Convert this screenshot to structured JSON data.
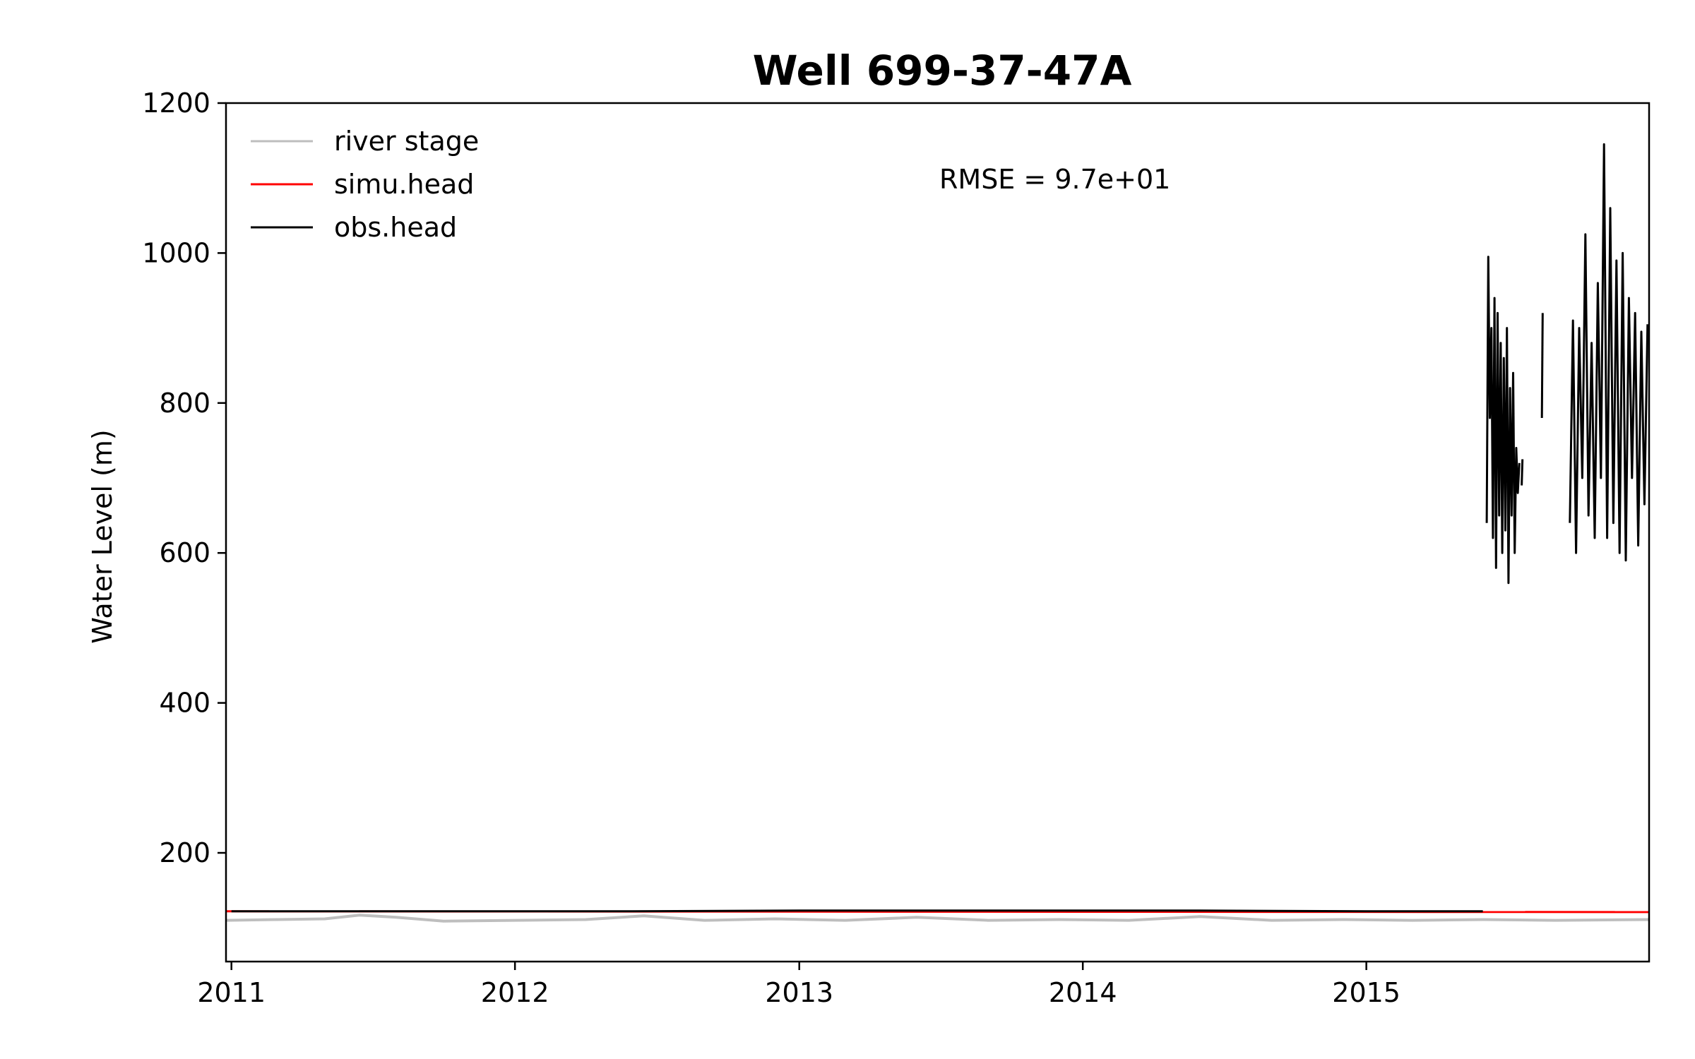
{
  "chart_data": {
    "type": "line",
    "title": "Well 699-37-47A",
    "xlabel": "",
    "ylabel": "Water Level (m)",
    "x_ticks": [
      "2011",
      "2012",
      "2013",
      "2014",
      "2015"
    ],
    "y_ticks": [
      200,
      400,
      600,
      800,
      1000,
      1200
    ],
    "xlim": [
      "2010-12-25",
      "2015-12-31"
    ],
    "ylim": [
      55,
      1200
    ],
    "grid": false,
    "legend_position": "upper-left",
    "annotation": "RMSE = 9.7e+01",
    "series": [
      {
        "name": "river stage",
        "color": "#bebebe",
        "x": [
          "2010-12-25",
          "2011-03-01",
          "2011-05-01",
          "2011-06-15",
          "2011-08-01",
          "2011-10-01",
          "2012-01-01",
          "2012-04-01",
          "2012-06-15",
          "2012-09-01",
          "2012-12-01",
          "2013-03-01",
          "2013-06-01",
          "2013-09-01",
          "2013-12-01",
          "2014-03-01",
          "2014-06-01",
          "2014-09-01",
          "2014-12-01",
          "2015-03-01",
          "2015-06-01",
          "2015-09-01",
          "2015-12-31"
        ],
        "y": [
          110,
          111,
          112,
          117,
          114,
          109,
          110,
          111,
          116,
          110,
          112,
          110,
          114,
          110,
          111,
          110,
          115,
          110,
          111,
          110,
          111,
          110,
          111
        ]
      },
      {
        "name": "simu.head",
        "color": "#ff0000",
        "x": [
          "2010-12-25",
          "2015-12-31"
        ],
        "y": [
          122,
          121
        ]
      },
      {
        "name": "obs.head",
        "color": "#000000",
        "segments": [
          {
            "x": [
              "2011-01-01",
              "2011-06-01",
              "2012-01-01",
              "2012-06-01",
              "2013-01-01",
              "2013-06-01",
              "2014-01-01",
              "2014-06-01",
              "2015-01-01",
              "2015-05-31"
            ],
            "y": [
              122,
              122,
              122,
              122,
              123,
              123,
              123,
              123,
              122,
              122
            ]
          },
          {
            "x": [
              "2015-06-05",
              "2015-06-07",
              "2015-06-09",
              "2015-06-11",
              "2015-06-13",
              "2015-06-15",
              "2015-06-17",
              "2015-06-19",
              "2015-06-21",
              "2015-06-23",
              "2015-06-25",
              "2015-06-27",
              "2015-06-29",
              "2015-07-01",
              "2015-07-03",
              "2015-07-05",
              "2015-07-07",
              "2015-07-09",
              "2015-07-11",
              "2015-07-13",
              "2015-07-15",
              "2015-07-17"
            ],
            "y": [
              640,
              995,
              780,
              900,
              620,
              940,
              580,
              920,
              650,
              880,
              600,
              860,
              630,
              900,
              560,
              820,
              650,
              840,
              600,
              740,
              680,
              720
            ]
          },
          {
            "x": [
              "2015-07-20",
              "2015-07-21"
            ],
            "y": [
              690,
              725
            ]
          },
          {
            "x": [
              "2015-08-15",
              "2015-08-16"
            ],
            "y": [
              780,
              920
            ]
          },
          {
            "x": [
              "2015-09-20",
              "2015-09-24",
              "2015-09-28",
              "2015-10-02",
              "2015-10-06",
              "2015-10-10",
              "2015-10-14",
              "2015-10-18",
              "2015-10-22",
              "2015-10-26",
              "2015-10-30",
              "2015-11-03",
              "2015-11-07",
              "2015-11-11",
              "2015-11-15",
              "2015-11-19",
              "2015-11-23",
              "2015-11-27",
              "2015-12-01",
              "2015-12-05",
              "2015-12-09",
              "2015-12-13",
              "2015-12-17",
              "2015-12-21",
              "2015-12-25",
              "2015-12-29"
            ],
            "y": [
              640,
              910,
              600,
              900,
              700,
              1025,
              650,
              880,
              620,
              960,
              700,
              1145,
              620,
              1060,
              640,
              990,
              600,
              1000,
              590,
              940,
              700,
              920,
              610,
              895,
              665,
              905
            ]
          }
        ]
      }
    ]
  }
}
